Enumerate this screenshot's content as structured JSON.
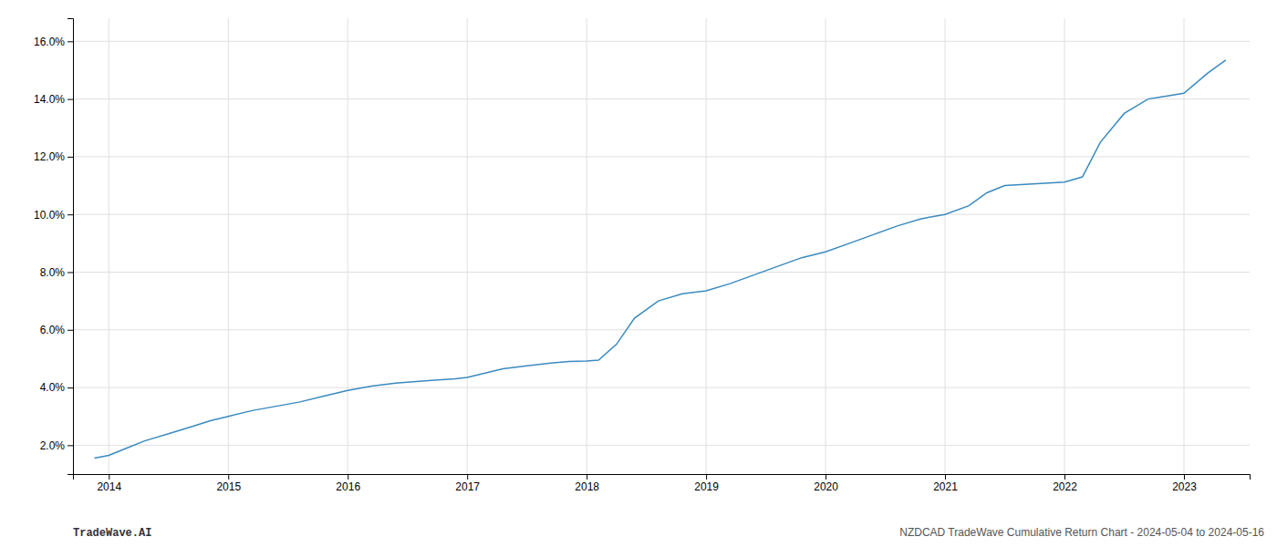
{
  "chart_data": {
    "type": "line",
    "x": [
      2013.88,
      2014.0,
      2014.15,
      2014.3,
      2014.5,
      2014.7,
      2014.85,
      2015.0,
      2015.2,
      2015.4,
      2015.6,
      2015.8,
      2016.0,
      2016.2,
      2016.4,
      2016.55,
      2016.7,
      2016.9,
      2017.0,
      2017.15,
      2017.3,
      2017.5,
      2017.7,
      2017.85,
      2018.0,
      2018.1,
      2018.25,
      2018.4,
      2018.6,
      2018.8,
      2019.0,
      2019.2,
      2019.4,
      2019.6,
      2019.8,
      2020.0,
      2020.2,
      2020.4,
      2020.6,
      2020.8,
      2021.0,
      2021.2,
      2021.35,
      2021.5,
      2021.7,
      2021.9,
      2022.0,
      2022.15,
      2022.3,
      2022.5,
      2022.7,
      2022.85,
      2023.0,
      2023.2,
      2023.35
    ],
    "values": [
      1.55,
      1.65,
      1.9,
      2.15,
      2.4,
      2.65,
      2.85,
      3.0,
      3.2,
      3.35,
      3.5,
      3.7,
      3.9,
      4.05,
      4.15,
      4.2,
      4.25,
      4.3,
      4.35,
      4.5,
      4.65,
      4.75,
      4.85,
      4.9,
      4.92,
      4.95,
      5.5,
      6.4,
      7.0,
      7.25,
      7.35,
      7.6,
      7.9,
      8.2,
      8.5,
      8.7,
      9.0,
      9.3,
      9.6,
      9.85,
      10.0,
      10.3,
      10.75,
      11.0,
      11.05,
      11.1,
      11.12,
      11.3,
      12.5,
      13.5,
      14.0,
      14.1,
      14.2,
      14.9,
      15.35
    ],
    "color": "#3a8abf",
    "xlim": [
      2013.7,
      2023.55
    ],
    "xticks": [
      2014,
      2015,
      2016,
      2017,
      2018,
      2019,
      2020,
      2021,
      2022,
      2023
    ],
    "ylim": [
      1.0,
      16.8
    ],
    "yticks": [
      {
        "value": 2.0,
        "label": "2.0%"
      },
      {
        "value": 4.0,
        "label": "4.0%"
      },
      {
        "value": 6.0,
        "label": "6.0%"
      },
      {
        "value": 8.0,
        "label": "8.0%"
      },
      {
        "value": 10.0,
        "label": "10.0%"
      },
      {
        "value": 12.0,
        "label": "12.0%"
      },
      {
        "value": 14.0,
        "label": "14.0%"
      },
      {
        "value": 16.0,
        "label": "16.0%"
      }
    ],
    "grid": true,
    "annotations": [
      "TradeWave.AI",
      "NZDCAD TradeWave Cumulative Return Chart - 2024-05-04 to 2024-05-16"
    ]
  }
}
